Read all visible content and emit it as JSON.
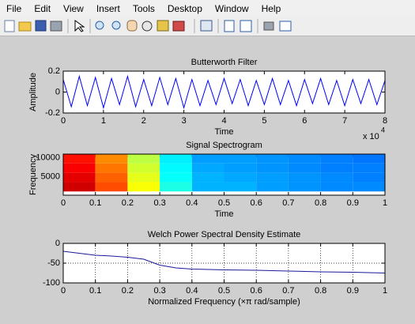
{
  "menu": [
    "File",
    "Edit",
    "View",
    "Insert",
    "Tools",
    "Desktop",
    "Window",
    "Help"
  ],
  "chart_data": [
    {
      "type": "line",
      "title": "Butterworth Filter",
      "x_label": "Time",
      "y_label": "Amplitude",
      "x_multiplier": "x 10",
      "x_multiplier_power": "4",
      "x": [
        0,
        0.2,
        0.4,
        0.6,
        0.8,
        1,
        1.2,
        1.4,
        1.6,
        1.8,
        2,
        2.2,
        2.4,
        2.6,
        2.8,
        3,
        3.2,
        3.4,
        3.6,
        3.8,
        4,
        4.2,
        4.4,
        4.6,
        4.8,
        5,
        5.2,
        5.4,
        5.6,
        5.8,
        6,
        6.2,
        6.4,
        6.6,
        6.8,
        7,
        7.2,
        7.4,
        7.6,
        7.8,
        8
      ],
      "series": [
        {
          "color": "#0000ff",
          "values": [
            0.12,
            -0.14,
            0.15,
            -0.13,
            0.14,
            -0.15,
            0.13,
            -0.12,
            0.15,
            -0.14,
            0.12,
            -0.13,
            0.14,
            -0.12,
            0.13,
            -0.15,
            0.12,
            -0.13,
            0.11,
            -0.12,
            0.13,
            -0.11,
            0.12,
            -0.13,
            0.11,
            -0.12,
            0.13,
            -0.12,
            0.11,
            -0.13,
            0.12,
            -0.11,
            0.13,
            -0.12,
            0.11,
            -0.13,
            0.12,
            -0.11,
            0.12,
            -0.12,
            0.11
          ]
        }
      ],
      "xlim": [
        0,
        8
      ],
      "xticks": [
        0,
        1,
        2,
        3,
        4,
        5,
        6,
        7,
        8
      ],
      "ylim": [
        -0.2,
        0.2
      ],
      "yticks": [
        -0.2,
        0,
        0.2
      ],
      "grid": false
    },
    {
      "type": "heatmap",
      "title": "Signal Spectrogram",
      "x_label": "Time",
      "y_label": "Frequency",
      "x_bins": [
        0,
        0.1,
        0.2,
        0.3,
        0.4,
        0.5,
        0.6,
        0.7,
        0.8,
        0.9,
        1
      ],
      "y_bins": [
        1000,
        3500,
        6000,
        8500,
        11000
      ],
      "values": [
        [
          0.92,
          0.8,
          0.62,
          0.4,
          0.3,
          0.3,
          0.28,
          0.27,
          0.26,
          0.26
        ],
        [
          0.9,
          0.78,
          0.6,
          0.38,
          0.3,
          0.29,
          0.28,
          0.27,
          0.26,
          0.25
        ],
        [
          0.88,
          0.76,
          0.58,
          0.37,
          0.29,
          0.28,
          0.27,
          0.26,
          0.25,
          0.25
        ],
        [
          0.86,
          0.74,
          0.56,
          0.36,
          0.28,
          0.28,
          0.27,
          0.26,
          0.25,
          0.24
        ]
      ],
      "clim": [
        0,
        1
      ],
      "xlim": [
        0,
        1
      ],
      "xticks": [
        0,
        0.1,
        0.2,
        0.3,
        0.4,
        0.5,
        0.6,
        0.7,
        0.8,
        0.9,
        1
      ],
      "ylim": [
        0,
        11000
      ],
      "yticks": [
        5000,
        10000
      ],
      "grid": false
    },
    {
      "type": "line",
      "title": "Welch Power Spectral Density Estimate",
      "x_label": "Normalized Frequency  (×π rad/sample)",
      "x": [
        0,
        0.05,
        0.1,
        0.15,
        0.2,
        0.25,
        0.3,
        0.35,
        0.4,
        0.5,
        0.6,
        0.7,
        0.8,
        0.9,
        1
      ],
      "series": [
        {
          "color": "#1a1a9a",
          "values": [
            -20,
            -25,
            -30,
            -32,
            -35,
            -40,
            -55,
            -62,
            -65,
            -67,
            -68,
            -70,
            -72,
            -73,
            -75
          ]
        }
      ],
      "xlim": [
        0,
        1
      ],
      "xticks": [
        0,
        0.1,
        0.2,
        0.3,
        0.4,
        0.5,
        0.6,
        0.7,
        0.8,
        0.9,
        1
      ],
      "ylim": [
        -100,
        0
      ],
      "yticks": [
        -100,
        -50,
        0
      ],
      "grid": true
    }
  ]
}
